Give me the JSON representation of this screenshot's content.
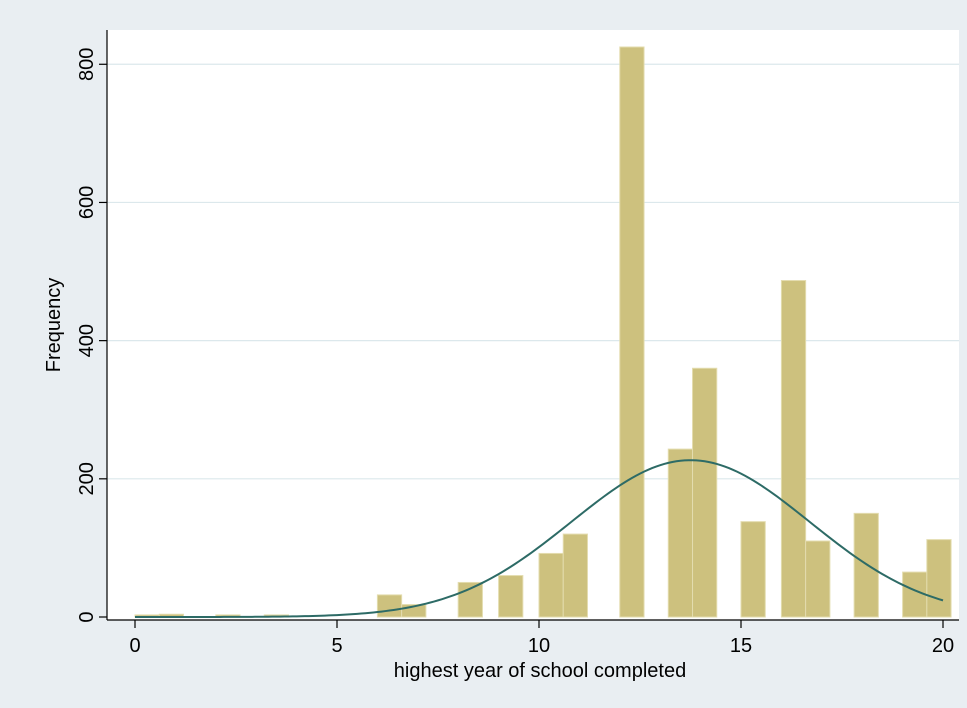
{
  "chart_data": {
    "type": "bar",
    "overlay": "normal-density-curve",
    "title": "",
    "xlabel": "highest year of school completed",
    "ylabel": "Frequency",
    "xlim": [
      -0.5,
      20.3
    ],
    "ylim": [
      0,
      845
    ],
    "xticks": [
      0,
      5,
      10,
      15,
      20
    ],
    "yticks": [
      0,
      200,
      400,
      600,
      800
    ],
    "grid": true,
    "bin_width": 0.6,
    "bins": [
      {
        "x": 0.0,
        "y": 3
      },
      {
        "x": 0.6,
        "y": 4
      },
      {
        "x": 2.0,
        "y": 3
      },
      {
        "x": 3.2,
        "y": 3
      },
      {
        "x": 6.0,
        "y": 32
      },
      {
        "x": 6.6,
        "y": 18
      },
      {
        "x": 8.0,
        "y": 50
      },
      {
        "x": 9.0,
        "y": 60
      },
      {
        "x": 10.0,
        "y": 92
      },
      {
        "x": 10.6,
        "y": 120
      },
      {
        "x": 12.0,
        "y": 825
      },
      {
        "x": 13.2,
        "y": 243
      },
      {
        "x": 13.8,
        "y": 360
      },
      {
        "x": 15.0,
        "y": 138
      },
      {
        "x": 16.0,
        "y": 487
      },
      {
        "x": 16.6,
        "y": 110
      },
      {
        "x": 17.8,
        "y": 150
      },
      {
        "x": 19.0,
        "y": 65
      },
      {
        "x": 19.6,
        "y": 112
      }
    ],
    "density": {
      "mean": 13.75,
      "sd": 2.95,
      "peak": 227,
      "x_start": 0,
      "x_end": 20
    },
    "colors": {
      "bar_fill": "#cdc17e",
      "bar_stroke": "#e3dcae",
      "curve": "#2d6b66",
      "plot_bg": "#ffffff",
      "outer_bg": "#e9eef2",
      "grid": "#dce8ec"
    }
  }
}
